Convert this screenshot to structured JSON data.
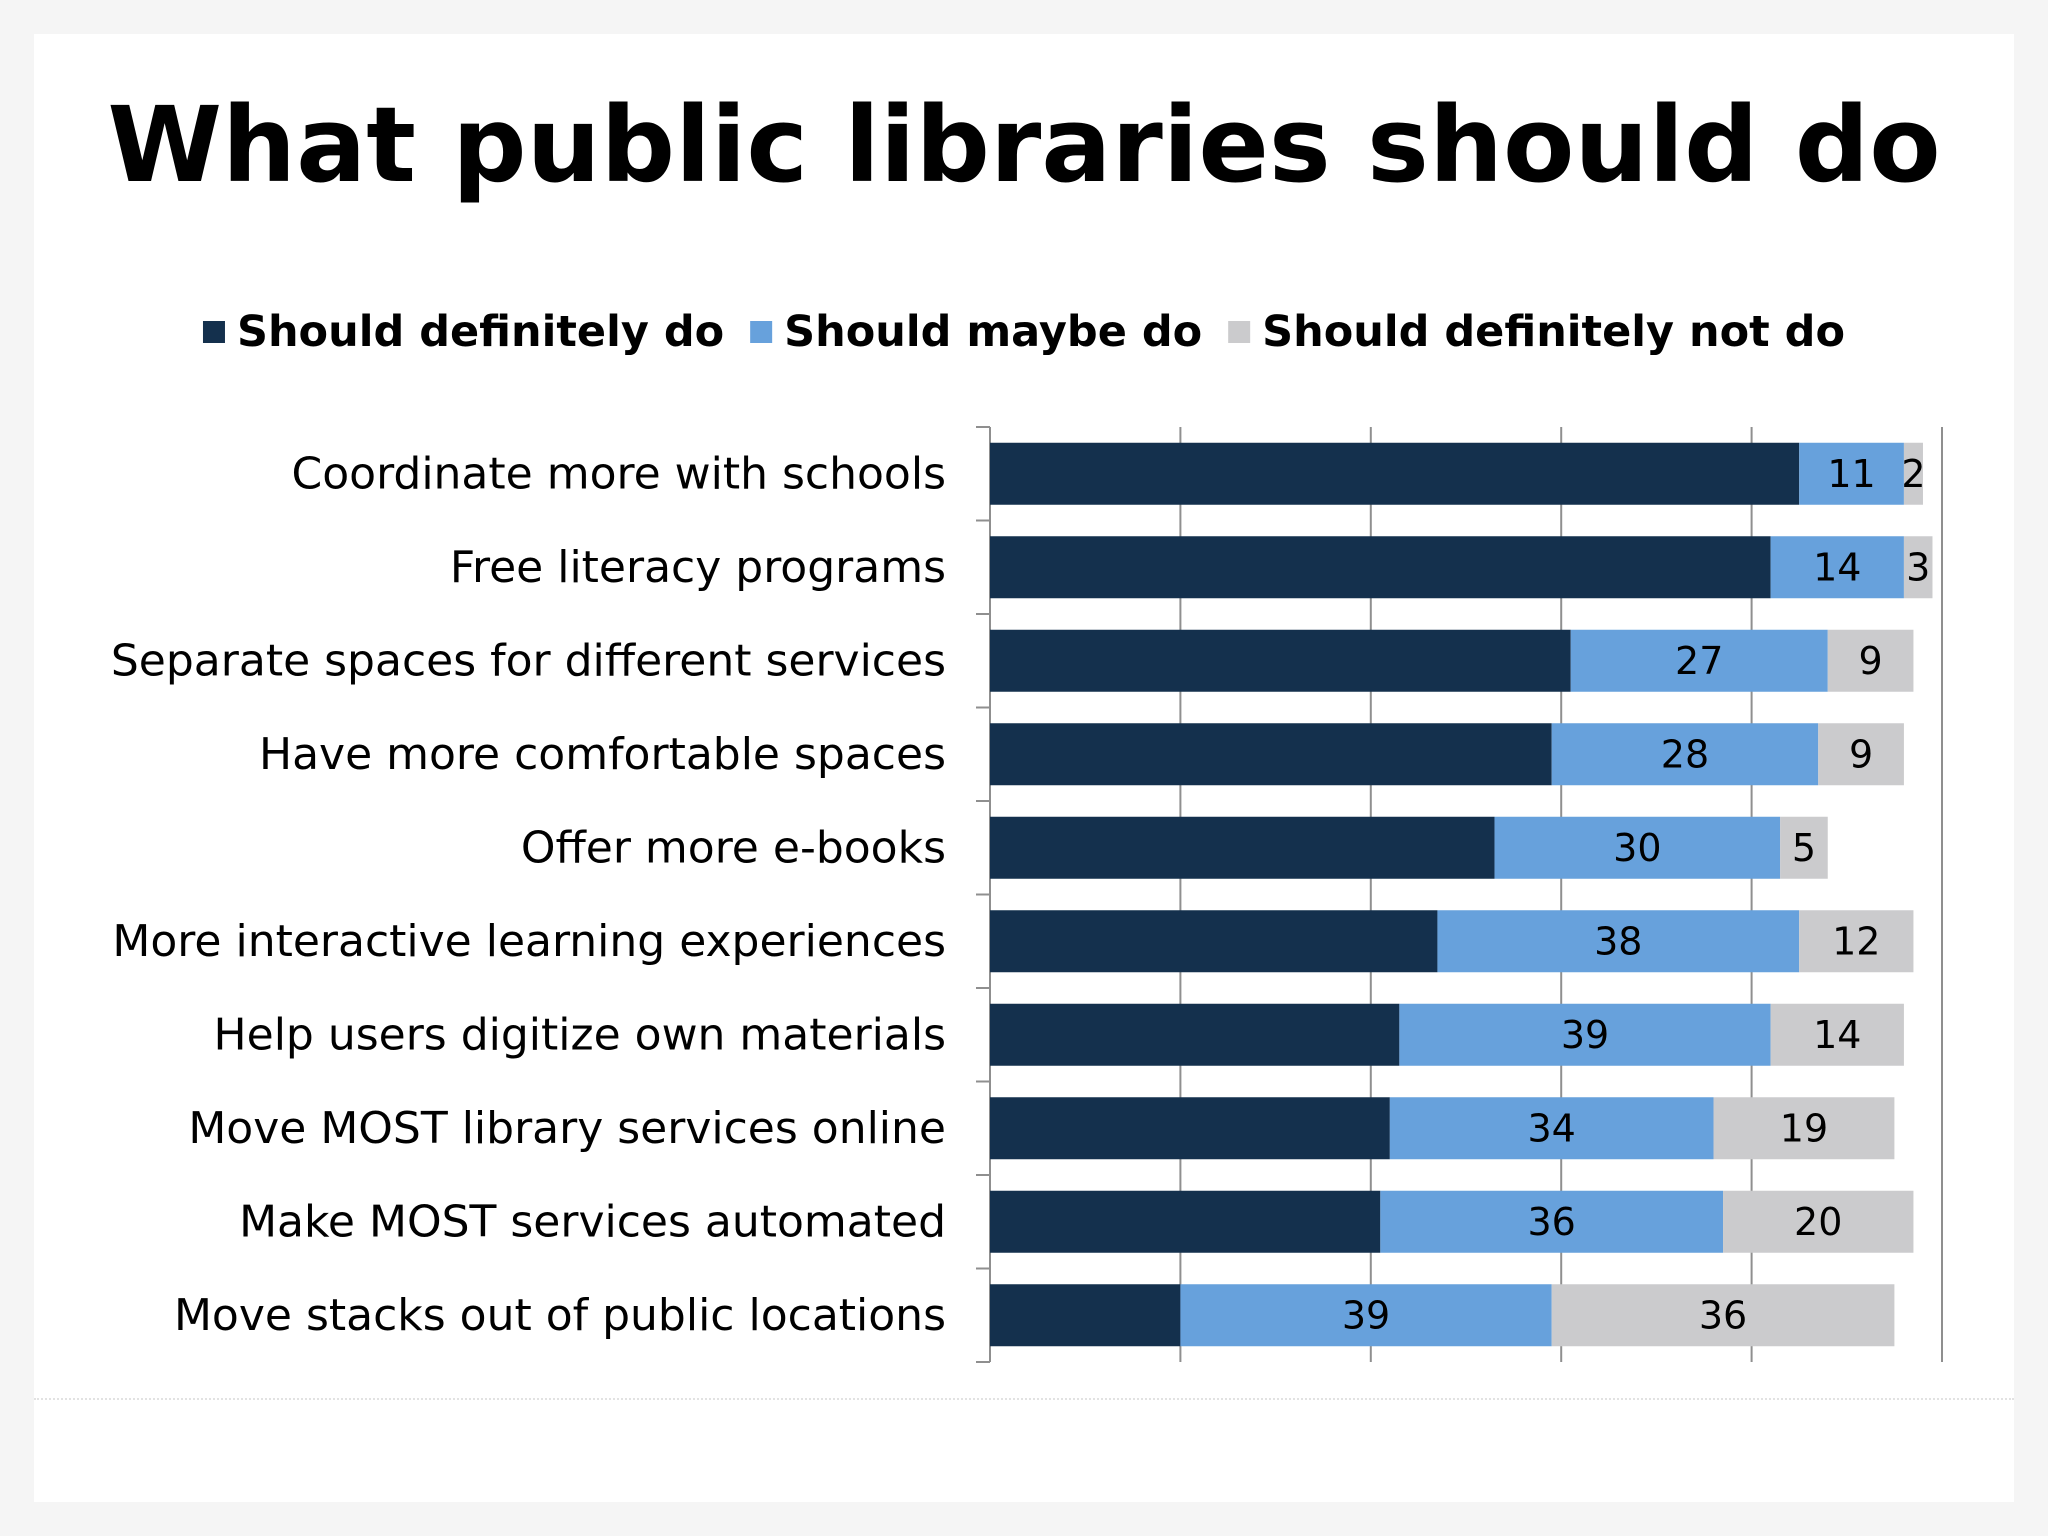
{
  "chart_data": {
    "type": "bar",
    "orientation": "horizontal",
    "stacked": true,
    "title": "What public libraries should do",
    "categories": [
      "Coordinate more with schools",
      "Free literacy programs",
      "Separate spaces for different services",
      "Have more comfortable spaces",
      "Offer more e-books",
      "More interactive learning experiences",
      "Help users digitize own materials",
      "Move MOST library services online ",
      "Make MOST services automated",
      "Move stacks out of public locations"
    ],
    "series": [
      {
        "name": "Should definitely do",
        "color": "#14304d",
        "values": [
          85,
          82,
          61,
          59,
          53,
          47,
          43,
          42,
          41,
          20
        ],
        "show_labels": false
      },
      {
        "name": "Should maybe do",
        "color": "#67a1dc",
        "values": [
          11,
          14,
          27,
          28,
          30,
          38,
          39,
          34,
          36,
          39
        ],
        "show_labels": true
      },
      {
        "name": "Should definitely not do",
        "color": "#cbcbcd",
        "values": [
          2,
          3,
          9,
          9,
          5,
          12,
          14,
          19,
          20,
          36
        ],
        "show_labels": true
      }
    ],
    "xlim": [
      0,
      100
    ],
    "grid": true,
    "legend_position": "top"
  }
}
